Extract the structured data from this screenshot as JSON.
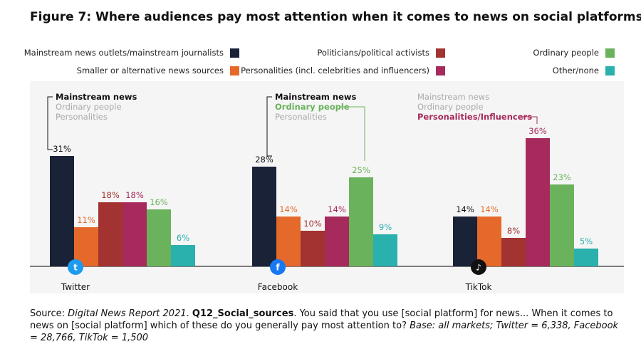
{
  "title": "Figure 7: Where audiences pay most attention when it comes to news on social platforms",
  "legend": [
    {
      "label": "Mainstream news outlets/mainstream journalists",
      "color": "#1a2238"
    },
    {
      "label": "Smaller or alternative news sources",
      "color": "#e5692b"
    },
    {
      "label": "Politicians/political activists",
      "color": "#a33331"
    },
    {
      "label": "Personalities (incl. celebrities and influencers)",
      "color": "#a72a5c"
    },
    {
      "label": "Ordinary people",
      "color": "#6ab35c"
    },
    {
      "label": "Other/none",
      "color": "#2ab0ad"
    }
  ],
  "source": {
    "prefix": "Source: ",
    "report": "Digital News Report 2021",
    "sep": ". ",
    "question": "Q12_Social_sources",
    "text": ". You said that you use [social platform] for news... When it comes to news on [social platform] which of these do you generally pay most attention to? ",
    "base": "Base: all markets; Twitter = 6,338, Facebook = 28,766, TikTok = 1,500"
  },
  "chart_data": {
    "type": "bar",
    "categories": [
      "Twitter",
      "Facebook",
      "TikTok"
    ],
    "series": [
      {
        "name": "Mainstream news outlets/mainstream journalists",
        "values": [
          31,
          28,
          14
        ],
        "color": "#1a2238"
      },
      {
        "name": "Smaller or alternative news sources",
        "values": [
          11,
          14,
          14
        ],
        "color": "#e5692b"
      },
      {
        "name": "Politicians/political activists",
        "values": [
          18,
          10,
          8
        ],
        "color": "#a33331"
      },
      {
        "name": "Personalities (incl. celebrities and influencers)",
        "values": [
          18,
          14,
          36
        ],
        "color": "#a72a5c"
      },
      {
        "name": "Ordinary people",
        "values": [
          16,
          25,
          23
        ],
        "color": "#6ab35c"
      },
      {
        "name": "Other/none",
        "values": [
          6,
          9,
          5
        ],
        "color": "#2ab0ad"
      }
    ],
    "value_suffix": "%",
    "ylim": [
      0,
      40
    ],
    "grid": false,
    "legend_position": "top",
    "platform_icons": [
      "twitter-icon",
      "facebook-icon",
      "tiktok-icon"
    ],
    "annotations": [
      {
        "platform": "Twitter",
        "lines": [
          "Mainstream news",
          "Ordinary people",
          "Personalities"
        ],
        "highlight": 0,
        "highlight_color": "#111111",
        "series": 0
      },
      {
        "platform": "Facebook",
        "lines": [
          "Mainstream news",
          "Ordinary people",
          "Personalities"
        ],
        "highlight": [
          0,
          1
        ],
        "highlight_colors": [
          "#111111",
          "#6ab35c"
        ],
        "series": [
          0,
          4
        ]
      },
      {
        "platform": "TikTok",
        "lines": [
          "Mainstream news",
          "Ordinary people",
          "Personalities/Influencers"
        ],
        "highlight": 2,
        "highlight_color": "#a72a5c",
        "series": 3
      }
    ],
    "muted_color": "#aaaaaa"
  }
}
